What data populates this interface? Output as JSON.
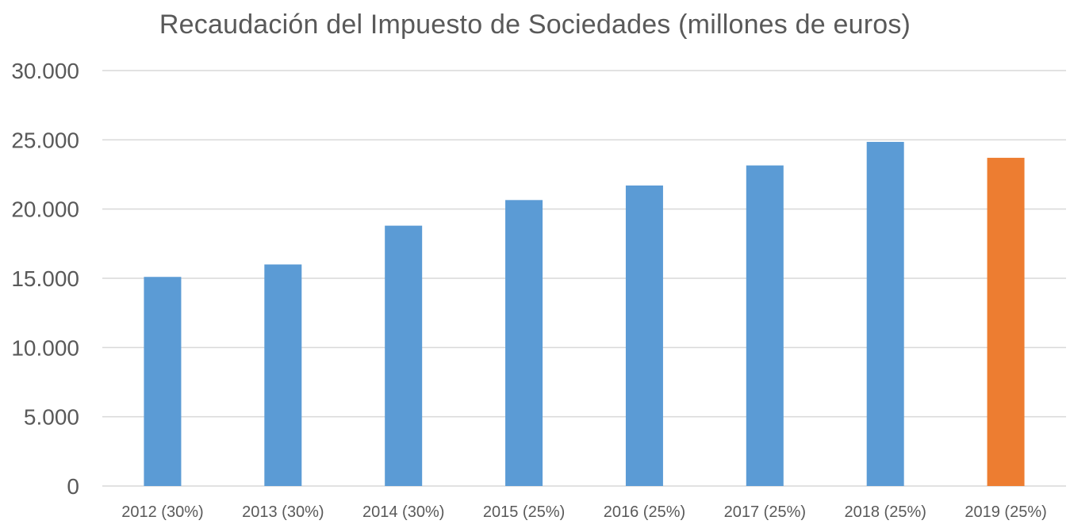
{
  "chart_data": {
    "type": "bar",
    "title": "Recaudación del Impuesto de Sociedades (millones de euros)",
    "xlabel": "",
    "ylabel": "",
    "categories": [
      "2012 (30%)",
      "2013 (30%)",
      "2014 (30%)",
      "2015 (25%)",
      "2016 (25%)",
      "2017 (25%)",
      "2018 (25%)",
      "2019 (25%)"
    ],
    "values": [
      15100,
      16000,
      18800,
      20650,
      21700,
      23150,
      24850,
      23700
    ],
    "bar_colors": [
      "#5b9bd5",
      "#5b9bd5",
      "#5b9bd5",
      "#5b9bd5",
      "#5b9bd5",
      "#5b9bd5",
      "#5b9bd5",
      "#ed7d31"
    ],
    "ylim": [
      0,
      30000
    ],
    "yticks": [
      0,
      5000,
      10000,
      15000,
      20000,
      25000,
      30000
    ],
    "ytick_labels": [
      "0",
      "5.000",
      "10.000",
      "15.000",
      "20.000",
      "25.000",
      "30.000"
    ],
    "grid": true,
    "legend": "none",
    "colors": {
      "primary": "#5b9bd5",
      "highlight": "#ed7d31",
      "grid": "#d9d9d9",
      "text": "#595959"
    }
  }
}
